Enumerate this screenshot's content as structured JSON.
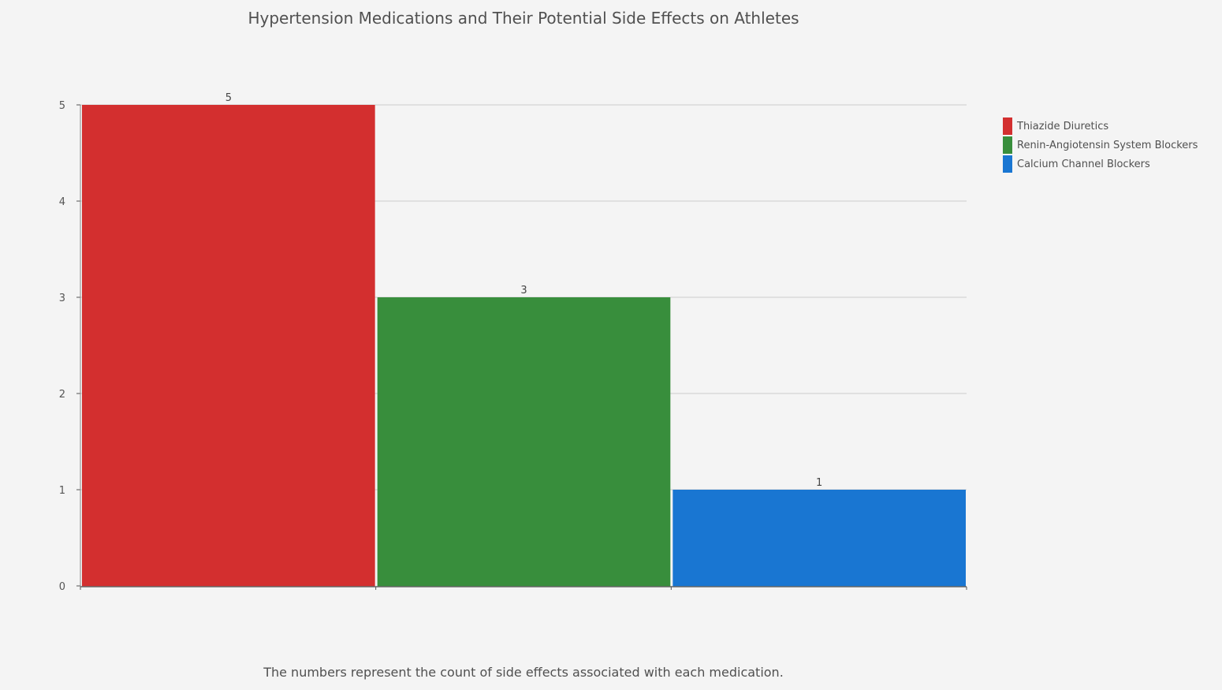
{
  "chart_data": {
    "type": "bar",
    "title": "Hypertension Medications and Their Potential Side Effects on Athletes",
    "caption": "The numbers represent the count of side effects associated with each medication.",
    "categories": [
      "Thiazide Diuretics",
      "Renin-Angiotensin System Blockers",
      "Calcium Channel Blockers"
    ],
    "values": [
      5,
      3,
      1
    ],
    "colors": [
      "#d32f2f",
      "#388e3c",
      "#1976d2"
    ],
    "data_labels": [
      "5",
      "3",
      "1"
    ],
    "yticks": [
      0,
      1,
      2,
      3,
      4,
      5
    ],
    "ylim": [
      0,
      5
    ],
    "xlabel": "",
    "ylabel": "",
    "grid": true,
    "legend_position": "right"
  }
}
